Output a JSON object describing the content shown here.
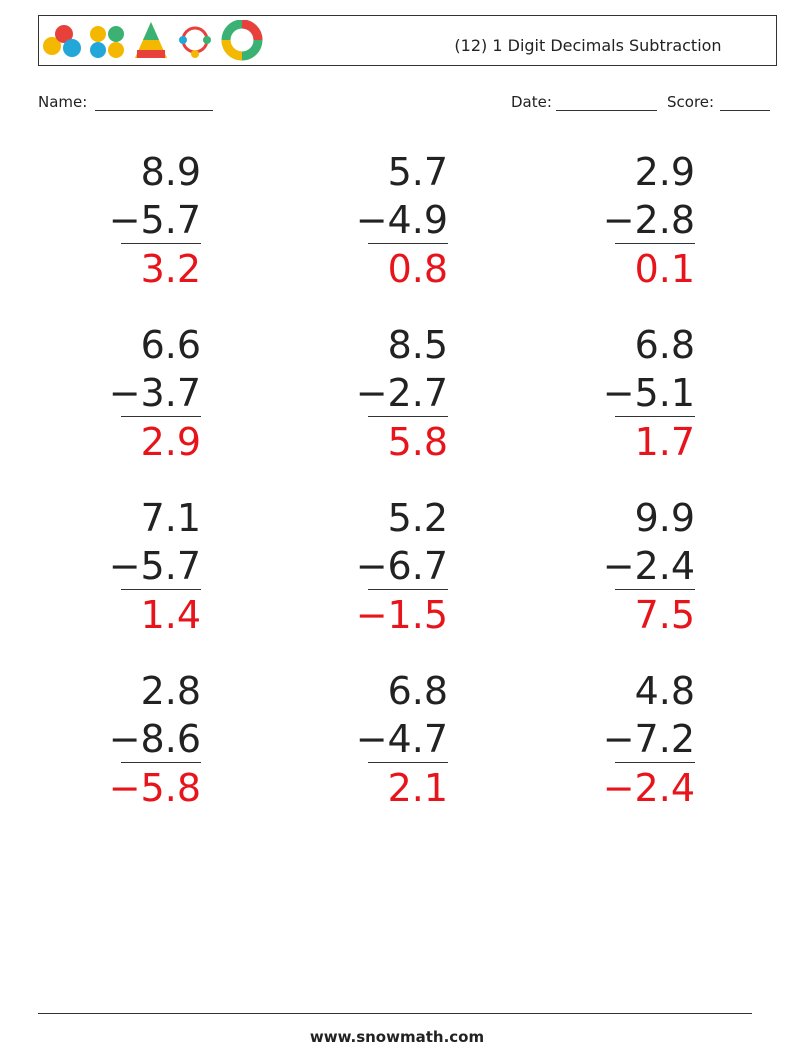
{
  "header": {
    "title": "(12) 1 Digit Decimals Subtraction"
  },
  "fields": {
    "name": "Name:",
    "date": "Date:",
    "score": "Score:"
  },
  "problems": [
    {
      "top": "8.9",
      "bottom": "−5.7",
      "answer": "3.2"
    },
    {
      "top": "5.7",
      "bottom": "−4.9",
      "answer": "0.8"
    },
    {
      "top": "2.9",
      "bottom": "−2.8",
      "answer": "0.1"
    },
    {
      "top": "6.6",
      "bottom": "−3.7",
      "answer": "2.9"
    },
    {
      "top": "8.5",
      "bottom": "−2.7",
      "answer": "5.8"
    },
    {
      "top": "6.8",
      "bottom": "−5.1",
      "answer": "1.7"
    },
    {
      "top": "7.1",
      "bottom": "−5.7",
      "answer": "1.4"
    },
    {
      "top": "5.2",
      "bottom": "−6.7",
      "answer": "−1.5"
    },
    {
      "top": "9.9",
      "bottom": "−2.4",
      "answer": "7.5"
    },
    {
      "top": "2.8",
      "bottom": "−8.6",
      "answer": "−5.8"
    },
    {
      "top": "6.8",
      "bottom": "−4.7",
      "answer": "2.1"
    },
    {
      "top": "4.8",
      "bottom": "−7.2",
      "answer": "−2.4"
    }
  ],
  "footer": "www.snowmath.com"
}
